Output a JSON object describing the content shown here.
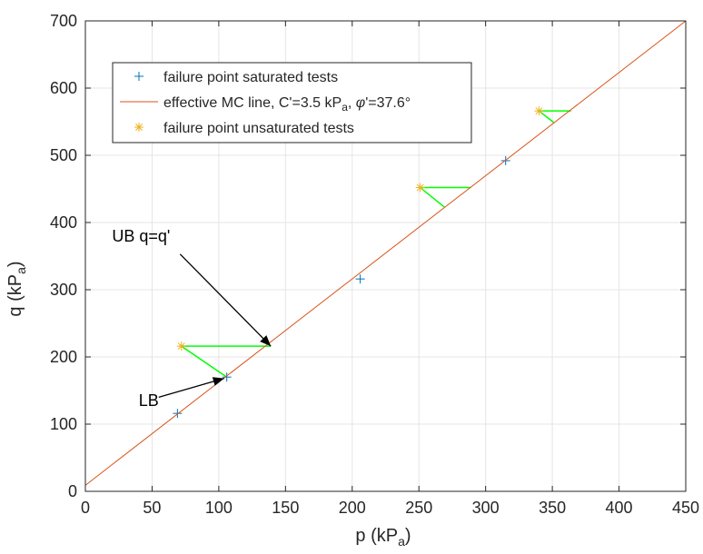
{
  "chart_data": {
    "type": "scatter",
    "xlabel": "p (kP",
    "xlabel_sub": "a",
    "xlabel_tail": ")",
    "ylabel": "q (kP",
    "ylabel_sub": "a",
    "ylabel_tail": ")",
    "xlim": [
      0,
      450
    ],
    "ylim": [
      0,
      700
    ],
    "xticks": [
      0,
      50,
      100,
      150,
      200,
      250,
      300,
      350,
      400,
      450
    ],
    "yticks": [
      0,
      100,
      200,
      300,
      400,
      500,
      600,
      700
    ],
    "grid": true,
    "legend_position": "top-left",
    "legend": [
      {
        "marker": "plus",
        "color": "#0072BD",
        "text": "failure point saturated tests"
      },
      {
        "marker": "line",
        "color": "#D95319",
        "text_parts": [
          "effective MC line, C'=3.5 kP",
          "a",
          ", ",
          "φ",
          "'=37.6°"
        ]
      },
      {
        "marker": "asterisk",
        "color": "#EDB120",
        "text": "failure point unsaturated tests"
      }
    ],
    "series": [
      {
        "name": "failure point saturated tests",
        "kind": "scatter",
        "marker": "plus",
        "color": "#0072BD",
        "x": [
          69,
          106,
          206,
          315
        ],
        "y": [
          116,
          170,
          316,
          492
        ]
      },
      {
        "name": "effective MC line, C'=3.5 kP, φ'=37.6°",
        "kind": "line",
        "color": "#D95319",
        "x": [
          0,
          450
        ],
        "y": [
          9,
          700
        ]
      },
      {
        "name": "failure point unsaturated tests",
        "kind": "scatter",
        "marker": "asterisk",
        "color": "#EDB120",
        "x": [
          72,
          251,
          340
        ],
        "y": [
          216,
          452,
          566
        ]
      }
    ],
    "triangles": {
      "color": "#00FF00",
      "items": [
        {
          "apex": [
            72,
            216
          ],
          "upper": [
            139,
            216
          ],
          "lower": [
            106,
            170
          ]
        },
        {
          "apex": [
            251,
            452
          ],
          "upper": [
            289,
            452
          ],
          "lower": [
            269,
            423
          ]
        },
        {
          "apex": [
            340,
            566
          ],
          "upper": [
            364,
            566
          ],
          "lower": [
            351,
            549
          ]
        }
      ]
    },
    "annotations": [
      {
        "text": "UB q=q'",
        "text_at": [
          20,
          380
        ],
        "arrow_from": [
          71,
          353
        ],
        "arrow_to": [
          139,
          216
        ]
      },
      {
        "text": "LB",
        "text_at": [
          40,
          135
        ],
        "arrow_from": [
          55,
          140
        ],
        "arrow_to": [
          104,
          168
        ]
      }
    ]
  }
}
